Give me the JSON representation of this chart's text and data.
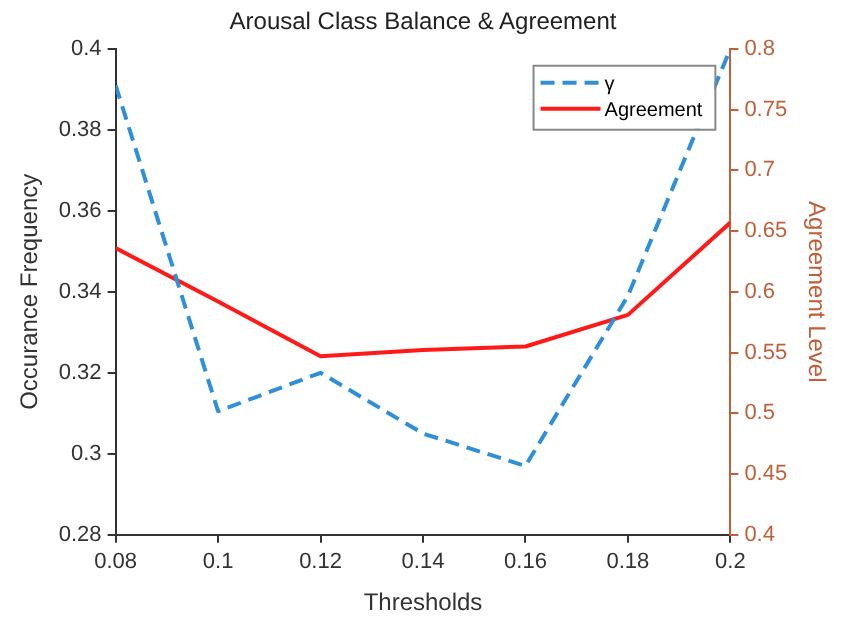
{
  "chart_data": {
    "type": "line",
    "title": "Arousal Class Balance & Agreement",
    "xlabel": "Thresholds",
    "ylabel": "Occurance Frequency",
    "y2label": "Agreement Level",
    "x": [
      0.08,
      0.1,
      0.12,
      0.14,
      0.16,
      0.18,
      0.2
    ],
    "series": [
      {
        "name": "γ",
        "color": "#2f8fd8",
        "line_style": "dashed",
        "values": [
          0.391,
          0.3105,
          0.32,
          0.305,
          0.297,
          0.339,
          0.4
        ]
      },
      {
        "name": "Agreement",
        "color": "#ff1a1a",
        "line_style": "solid",
        "axis": "y2",
        "values": [
          0.636,
          0.592,
          0.547,
          0.552,
          0.555,
          0.581,
          0.657
        ]
      }
    ],
    "xlim": [
      0.08,
      0.2
    ],
    "xticks": [
      0.08,
      0.1,
      0.12,
      0.14,
      0.16,
      0.18,
      0.2
    ],
    "ylim": [
      0.28,
      0.4
    ],
    "yticks": [
      0.28,
      0.3,
      0.32,
      0.34,
      0.36,
      0.38,
      0.4
    ],
    "y2lim": [
      0.4,
      0.8
    ],
    "y2ticks": [
      0.4,
      0.45,
      0.5,
      0.55,
      0.6,
      0.65,
      0.7,
      0.75,
      0.8
    ],
    "grid": false,
    "legend": "top right",
    "marker": "none"
  }
}
